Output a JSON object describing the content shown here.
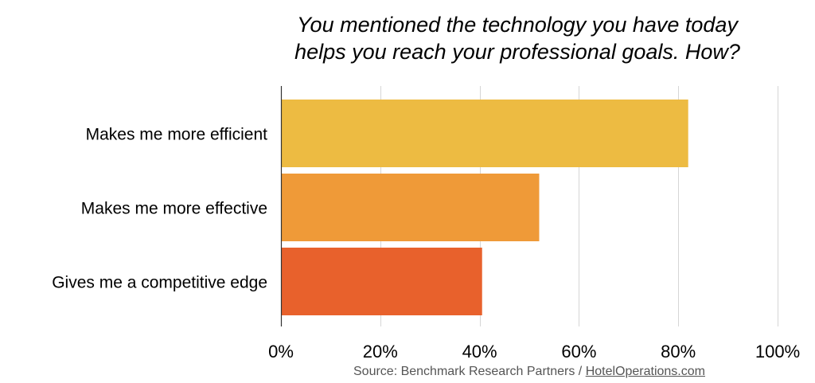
{
  "chart_data": {
    "type": "bar",
    "orientation": "horizontal",
    "title_lines": [
      "You mentioned the technology you have today",
      "helps you reach your professional goals. How?"
    ],
    "categories": [
      "Makes me more efficient",
      "Makes me more effective",
      "Gives me a competitive edge"
    ],
    "values": [
      82,
      52,
      40.5
    ],
    "bar_colors": [
      "#EDBB42",
      "#EF9A38",
      "#E8612C"
    ],
    "xlim": [
      0,
      100
    ],
    "x_ticks": [
      0,
      20,
      40,
      60,
      80,
      100
    ],
    "x_tick_labels": [
      "0%",
      "20%",
      "40%",
      "60%",
      "80%",
      "100%"
    ],
    "grid": true,
    "legend": false
  },
  "footer": {
    "source_prefix": "Source: Benchmark Research Partners / ",
    "source_link": "HotelOperations.com"
  }
}
